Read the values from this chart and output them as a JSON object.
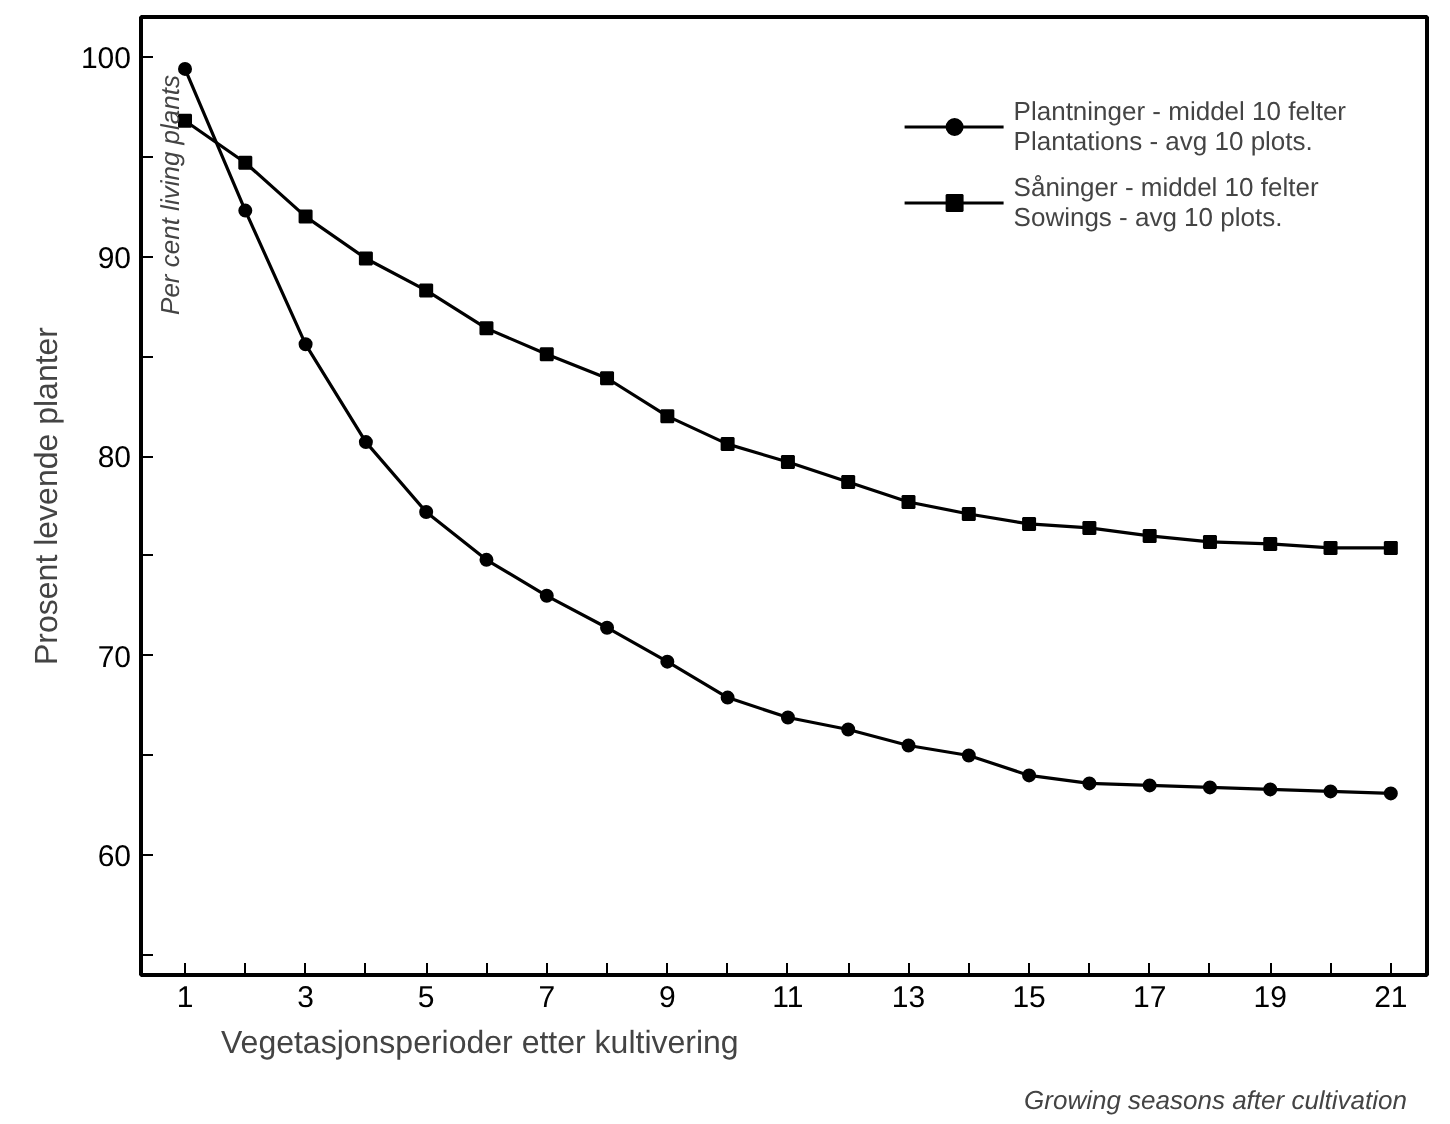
{
  "chart_data": {
    "type": "line",
    "xlabel": "Vegetasjonsperioder etter kultivering",
    "ylabel": "Prosent levende planter",
    "annotations": [
      "Per cent living plants",
      "Growing seasons after cultivation"
    ],
    "x": [
      1,
      2,
      3,
      4,
      5,
      6,
      7,
      8,
      9,
      10,
      11,
      12,
      13,
      14,
      15,
      16,
      17,
      18,
      19,
      20,
      21
    ],
    "series": [
      {
        "name": "Plantninger - middel 10 felter\nPlantations - avg 10 plots.",
        "color": "#000000",
        "marker": "circle",
        "values": [
          99.4,
          92.3,
          85.6,
          80.7,
          77.2,
          74.8,
          73.0,
          71.4,
          69.7,
          67.9,
          66.9,
          66.3,
          65.5,
          65.0,
          64.0,
          63.6,
          63.5,
          63.4,
          63.3,
          63.2,
          63.1
        ]
      },
      {
        "name": "Såninger - middel 10 felter\nSowings - avg 10 plots.",
        "color": "#000000",
        "marker": "square",
        "values": [
          96.8,
          94.7,
          92.0,
          89.9,
          88.3,
          86.4,
          85.1,
          83.9,
          82.0,
          80.6,
          79.7,
          78.7,
          77.7,
          77.1,
          76.6,
          76.4,
          76.0,
          75.7,
          75.6,
          75.4,
          75.4
        ]
      }
    ],
    "xlim": [
      0.27,
      21.6
    ],
    "ylim": [
      54,
      102
    ],
    "xticks": [
      1,
      {
        "value": 2,
        "label": null
      },
      3,
      {
        "value": 4,
        "label": null
      },
      5,
      {
        "value": 6,
        "label": null
      },
      7,
      {
        "value": 8,
        "label": null
      },
      9,
      {
        "value": 10,
        "label": null
      },
      11,
      {
        "value": 12,
        "label": null
      },
      13,
      {
        "value": 14,
        "label": null
      },
      15,
      {
        "value": 16,
        "label": null
      },
      17,
      {
        "value": 18,
        "label": null
      },
      19,
      {
        "value": 20,
        "label": null
      },
      21
    ],
    "yticks": [
      {
        "value": 55,
        "label": null
      },
      60,
      {
        "value": 65,
        "label": null
      },
      70,
      {
        "value": 75,
        "label": null
      },
      80,
      {
        "value": 85,
        "label": null
      },
      90,
      {
        "value": 95,
        "label": null
      },
      100
    ],
    "grid": false,
    "legend": "top right",
    "line_style": "solid"
  }
}
